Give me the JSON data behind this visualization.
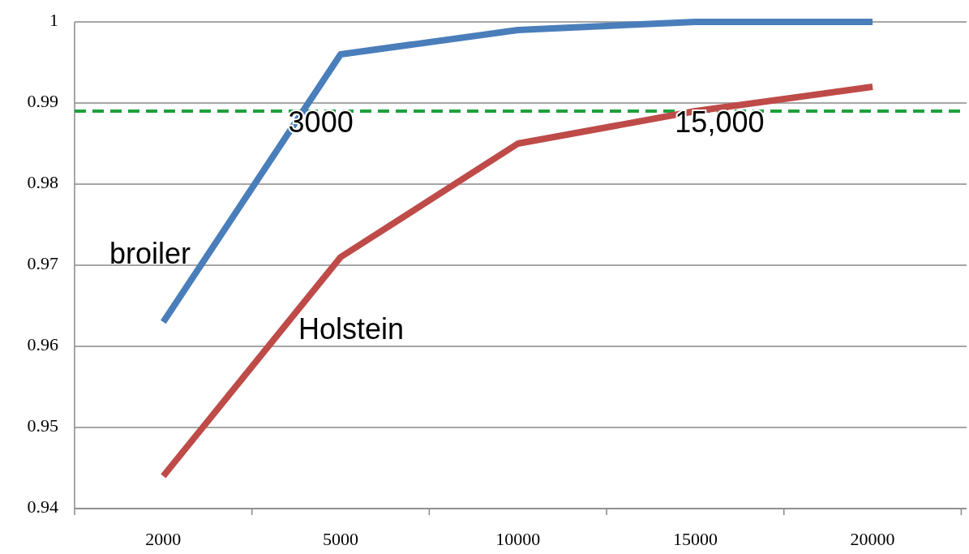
{
  "chart_data": {
    "type": "line",
    "categories": [
      "2000",
      "5000",
      "10000",
      "15000",
      "20000"
    ],
    "series": [
      {
        "name": "broiler",
        "color": "#4a7ebb",
        "values": [
          0.963,
          0.996,
          0.999,
          1,
          1
        ]
      },
      {
        "name": "Holstein",
        "color": "#be4b48",
        "values": [
          0.944,
          0.971,
          0.985,
          0.989,
          0.992
        ]
      }
    ],
    "ylim": [
      0.94,
      1
    ],
    "yticks": [
      0.94,
      0.95,
      0.96,
      0.97,
      0.98,
      0.99,
      1
    ],
    "grid": "y",
    "marker": "none",
    "line_style": "solid",
    "ref_lines": [
      {
        "axis": "y",
        "value": 0.989,
        "color": "#1fa03c",
        "line_style": "dashed"
      }
    ],
    "annotations": [
      {
        "text": "3000",
        "y": 0.989
      },
      {
        "text": "15,000",
        "x": "15000",
        "y": 0.989
      }
    ]
  }
}
